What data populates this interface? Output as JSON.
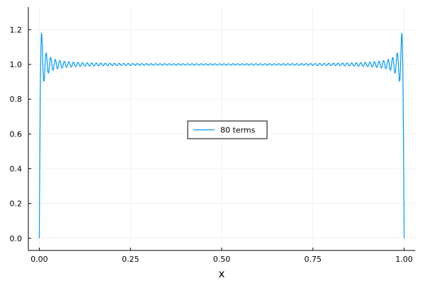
{
  "chart_data": {
    "type": "line",
    "title": "",
    "xlabel": "x",
    "ylabel": "",
    "xlim": [
      -0.03,
      1.03
    ],
    "ylim": [
      -0.07,
      1.33
    ],
    "x_ticks": [
      0.0,
      0.25,
      0.5,
      0.75,
      1.0
    ],
    "x_tick_labels": [
      "0.00",
      "0.25",
      "0.50",
      "0.75",
      "1.00"
    ],
    "y_ticks": [
      0.0,
      0.2,
      0.4,
      0.6,
      0.8,
      1.0,
      1.2
    ],
    "y_tick_labels": [
      "0.0",
      "0.2",
      "0.4",
      "0.6",
      "0.8",
      "1.0",
      "1.2"
    ],
    "grid": true,
    "legend": {
      "placement": "center",
      "entries": [
        "80 terms"
      ]
    },
    "series": [
      {
        "name": "80 terms",
        "color": "#009af9",
        "function": "fourier_square_wave",
        "terms": 80
      }
    ]
  }
}
